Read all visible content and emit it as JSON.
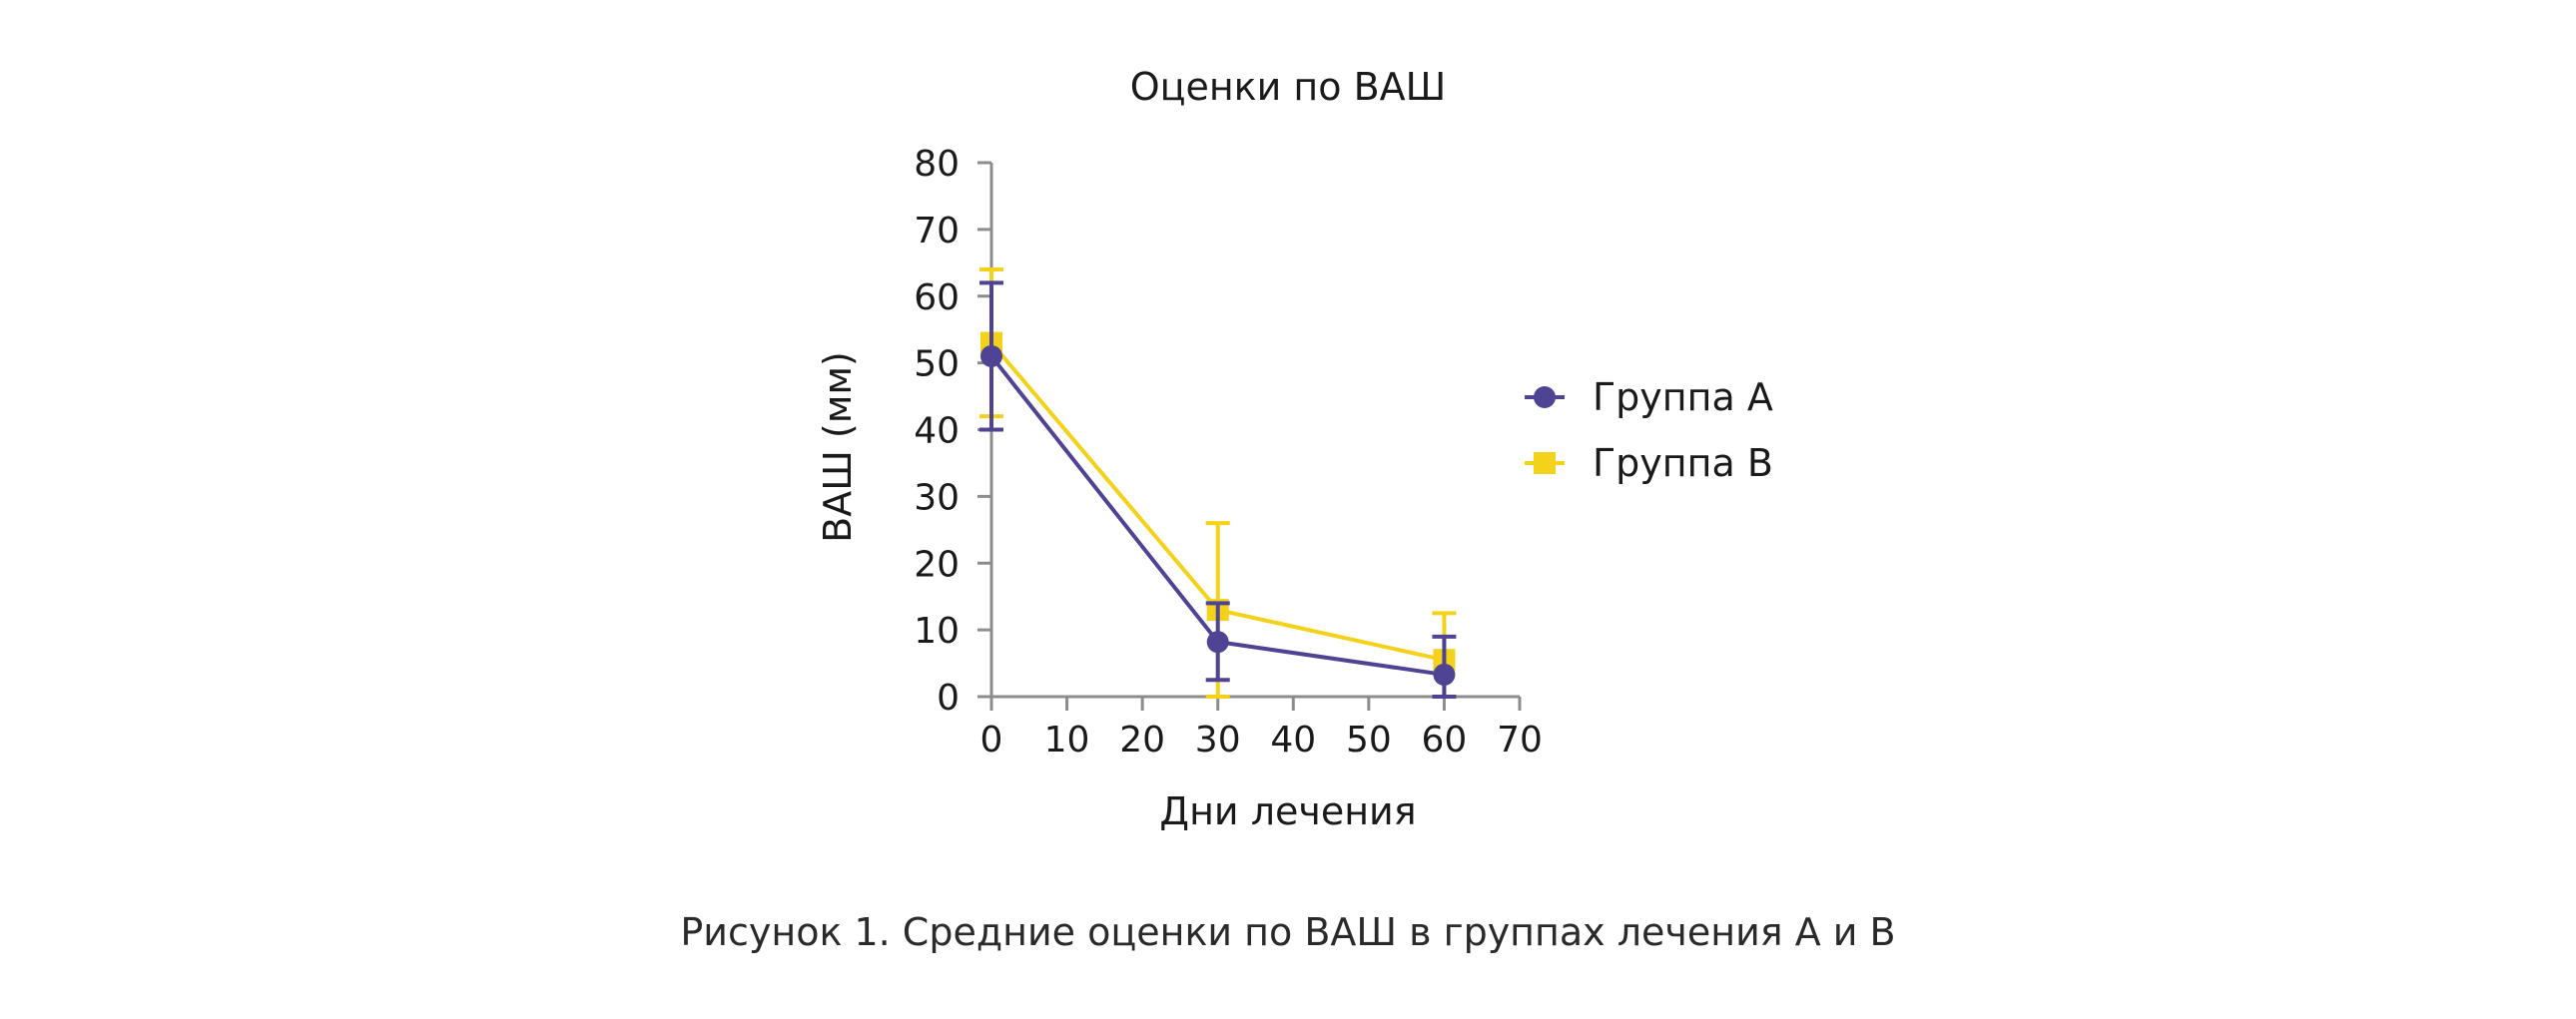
{
  "chart_data": {
    "type": "line",
    "title": "Оценки по ВАШ",
    "xlabel": "Дни лечения",
    "ylabel": "ВАШ (мм)",
    "x": [
      0,
      30,
      60
    ],
    "xlim": [
      0,
      70
    ],
    "ylim": [
      0,
      80
    ],
    "xticks": [
      0,
      10,
      20,
      30,
      40,
      50,
      60,
      70
    ],
    "yticks": [
      0,
      10,
      20,
      30,
      40,
      50,
      60,
      70,
      80
    ],
    "grid": false,
    "legend_position": "right",
    "series": [
      {
        "name": "Группа А",
        "marker": "circle",
        "color": "#4f4394",
        "values": [
          51,
          8.2,
          3.3
        ],
        "error_upper": [
          62,
          14,
          9
        ],
        "error_lower": [
          40,
          2.5,
          0
        ]
      },
      {
        "name": "Группа В",
        "marker": "square",
        "color": "#f4d21a",
        "values": [
          53,
          13,
          5.5
        ],
        "error_upper": [
          64,
          26,
          12.5
        ],
        "error_lower": [
          42,
          0,
          0
        ]
      }
    ]
  },
  "caption": "Рисунок 1. Средние оценки по ВАШ в группах лечения А и В"
}
